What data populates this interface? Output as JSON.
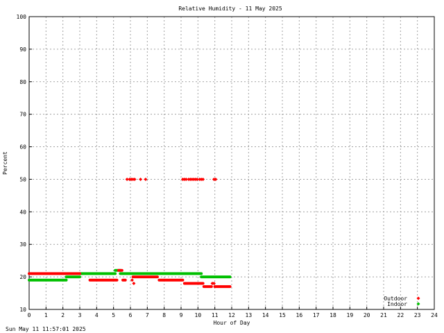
{
  "chart_data": {
    "type": "scatter",
    "title": "Relative Humidity - 11 May 2025",
    "xlabel": "Hour of Day",
    "ylabel": "Percent",
    "xlim": [
      0,
      24
    ],
    "ylim": [
      10,
      100
    ],
    "x_ticks": [
      0,
      1,
      2,
      3,
      4,
      5,
      6,
      7,
      8,
      9,
      10,
      11,
      12,
      13,
      14,
      15,
      16,
      17,
      18,
      19,
      20,
      21,
      22,
      23,
      24
    ],
    "y_ticks": [
      10,
      20,
      30,
      40,
      50,
      60,
      70,
      80,
      90,
      100
    ],
    "grid": true,
    "legend_position": "bottom-right",
    "series": [
      {
        "name": "Outdoor",
        "color": "#ff0000",
        "segments": [
          {
            "x0": 0.0,
            "x1": 3.0,
            "y": 21
          },
          {
            "x0": 3.6,
            "x1": 5.2,
            "y": 19
          },
          {
            "x0": 5.3,
            "x1": 5.5,
            "y": 22
          },
          {
            "x0": 5.55,
            "x1": 5.7,
            "y": 19
          },
          {
            "x0": 6.15,
            "x1": 7.6,
            "y": 20
          },
          {
            "x0": 7.7,
            "x1": 9.1,
            "y": 19
          },
          {
            "x0": 9.2,
            "x1": 10.3,
            "y": 18
          },
          {
            "x0": 10.35,
            "x1": 10.8,
            "y": 17
          },
          {
            "x0": 11.0,
            "x1": 11.9,
            "y": 17
          }
        ],
        "points": [
          {
            "x": 5.8,
            "y": 50
          },
          {
            "x": 5.95,
            "y": 50
          },
          {
            "x": 6.05,
            "y": 50
          },
          {
            "x": 6.15,
            "y": 50
          },
          {
            "x": 6.25,
            "y": 50
          },
          {
            "x": 6.6,
            "y": 50
          },
          {
            "x": 6.9,
            "y": 50
          },
          {
            "x": 9.1,
            "y": 50
          },
          {
            "x": 9.2,
            "y": 50
          },
          {
            "x": 9.3,
            "y": 50
          },
          {
            "x": 9.45,
            "y": 50
          },
          {
            "x": 9.55,
            "y": 50
          },
          {
            "x": 9.65,
            "y": 50
          },
          {
            "x": 9.75,
            "y": 50
          },
          {
            "x": 9.85,
            "y": 50
          },
          {
            "x": 9.95,
            "y": 50
          },
          {
            "x": 10.1,
            "y": 50
          },
          {
            "x": 10.2,
            "y": 50
          },
          {
            "x": 10.3,
            "y": 50
          },
          {
            "x": 10.95,
            "y": 50
          },
          {
            "x": 11.05,
            "y": 50
          },
          {
            "x": 6.1,
            "y": 19
          },
          {
            "x": 6.2,
            "y": 18
          },
          {
            "x": 10.85,
            "y": 18
          },
          {
            "x": 10.95,
            "y": 18
          }
        ]
      },
      {
        "name": "Indoor",
        "color": "#00c000",
        "segments": [
          {
            "x0": 0.0,
            "x1": 2.2,
            "y": 19
          },
          {
            "x0": 2.2,
            "x1": 3.0,
            "y": 20
          },
          {
            "x0": 3.0,
            "x1": 5.1,
            "y": 21
          },
          {
            "x0": 5.1,
            "x1": 5.4,
            "y": 22
          },
          {
            "x0": 5.4,
            "x1": 10.2,
            "y": 21
          },
          {
            "x0": 10.2,
            "x1": 11.9,
            "y": 20
          }
        ],
        "points": []
      }
    ]
  },
  "footer": {
    "timestamp": "Sun May 11 11:57:01 2025"
  }
}
